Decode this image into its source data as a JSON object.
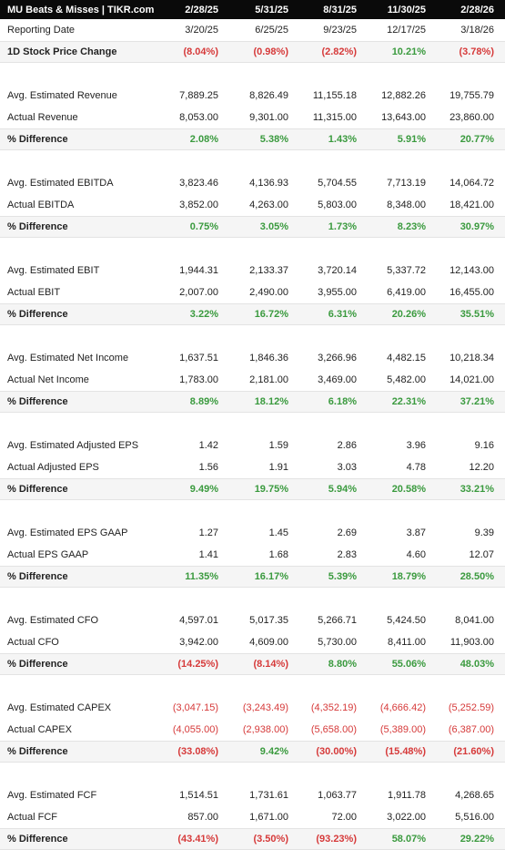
{
  "table": {
    "header": [
      "MU Beats & Misses | TIKR.com",
      "2/28/25",
      "5/31/25",
      "8/31/25",
      "11/30/25",
      "2/28/26"
    ],
    "sections": [
      {
        "rows": [
          [
            "Reporting Date",
            "3/20/25",
            "6/25/25",
            "9/23/25",
            "12/17/25",
            "3/18/26"
          ],
          [
            "1D Stock Price Change",
            "(8.04%)",
            "(0.98%)",
            "(2.82%)",
            "10.21%",
            "(3.78%)"
          ]
        ]
      },
      {
        "rows": [
          [
            "Avg. Estimated Revenue",
            "7,889.25",
            "8,826.49",
            "11,155.18",
            "12,882.26",
            "19,755.79"
          ],
          [
            "Actual Revenue",
            "8,053.00",
            "9,301.00",
            "11,315.00",
            "13,643.00",
            "23,860.00"
          ],
          [
            "% Difference",
            "2.08%",
            "5.38%",
            "1.43%",
            "5.91%",
            "20.77%"
          ]
        ]
      },
      {
        "rows": [
          [
            "Avg. Estimated EBITDA",
            "3,823.46",
            "4,136.93",
            "5,704.55",
            "7,713.19",
            "14,064.72"
          ],
          [
            "Actual EBITDA",
            "3,852.00",
            "4,263.00",
            "5,803.00",
            "8,348.00",
            "18,421.00"
          ],
          [
            "% Difference",
            "0.75%",
            "3.05%",
            "1.73%",
            "8.23%",
            "30.97%"
          ]
        ]
      },
      {
        "rows": [
          [
            "Avg. Estimated EBIT",
            "1,944.31",
            "2,133.37",
            "3,720.14",
            "5,337.72",
            "12,143.00"
          ],
          [
            "Actual EBIT",
            "2,007.00",
            "2,490.00",
            "3,955.00",
            "6,419.00",
            "16,455.00"
          ],
          [
            "% Difference",
            "3.22%",
            "16.72%",
            "6.31%",
            "20.26%",
            "35.51%"
          ]
        ]
      },
      {
        "rows": [
          [
            "Avg. Estimated Net Income",
            "1,637.51",
            "1,846.36",
            "3,266.96",
            "4,482.15",
            "10,218.34"
          ],
          [
            "Actual Net Income",
            "1,783.00",
            "2,181.00",
            "3,469.00",
            "5,482.00",
            "14,021.00"
          ],
          [
            "% Difference",
            "8.89%",
            "18.12%",
            "6.18%",
            "22.31%",
            "37.21%"
          ]
        ]
      },
      {
        "rows": [
          [
            "Avg. Estimated Adjusted EPS",
            "1.42",
            "1.59",
            "2.86",
            "3.96",
            "9.16"
          ],
          [
            "Actual Adjusted EPS",
            "1.56",
            "1.91",
            "3.03",
            "4.78",
            "12.20"
          ],
          [
            "% Difference",
            "9.49%",
            "19.75%",
            "5.94%",
            "20.58%",
            "33.21%"
          ]
        ]
      },
      {
        "rows": [
          [
            "Avg. Estimated EPS GAAP",
            "1.27",
            "1.45",
            "2.69",
            "3.87",
            "9.39"
          ],
          [
            "Actual EPS GAAP",
            "1.41",
            "1.68",
            "2.83",
            "4.60",
            "12.07"
          ],
          [
            "% Difference",
            "11.35%",
            "16.17%",
            "5.39%",
            "18.79%",
            "28.50%"
          ]
        ]
      },
      {
        "rows": [
          [
            "Avg. Estimated CFO",
            "4,597.01",
            "5,017.35",
            "5,266.71",
            "5,424.50",
            "8,041.00"
          ],
          [
            "Actual CFO",
            "3,942.00",
            "4,609.00",
            "5,730.00",
            "8,411.00",
            "11,903.00"
          ],
          [
            "% Difference",
            "(14.25%)",
            "(8.14%)",
            "8.80%",
            "55.06%",
            "48.03%"
          ]
        ]
      },
      {
        "rows": [
          [
            "Avg. Estimated CAPEX",
            "(3,047.15)",
            "(3,243.49)",
            "(4,352.19)",
            "(4,666.42)",
            "(5,252.59)"
          ],
          [
            "Actual CAPEX",
            "(4,055.00)",
            "(2,938.00)",
            "(5,658.00)",
            "(5,389.00)",
            "(6,387.00)"
          ],
          [
            "% Difference",
            "(33.08%)",
            "9.42%",
            "(30.00%)",
            "(15.48%)",
            "(21.60%)"
          ]
        ]
      },
      {
        "rows": [
          [
            "Avg. Estimated FCF",
            "1,514.51",
            "1,731.61",
            "1,063.77",
            "1,911.78",
            "4,268.65"
          ],
          [
            "Actual FCF",
            "857.00",
            "1,671.00",
            "72.00",
            "3,022.00",
            "5,516.00"
          ],
          [
            "% Difference",
            "(43.41%)",
            "(3.50%)",
            "(93.23%)",
            "58.07%",
            "29.22%"
          ]
        ]
      }
    ]
  }
}
